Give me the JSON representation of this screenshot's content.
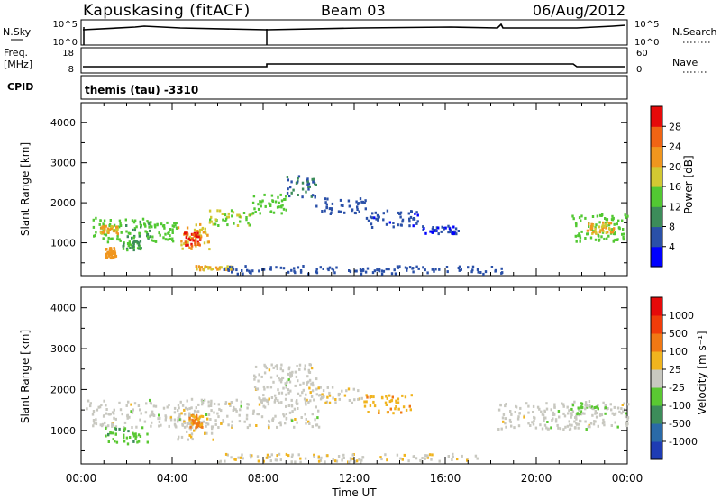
{
  "header": {
    "station": "Kapuskasing (fitACF)",
    "beam": "Beam 03",
    "date": "06/Aug/2012"
  },
  "noise_panel": {
    "left_label": "N.Sky",
    "right_label": "N.Search",
    "left_ticks": [
      "10^5",
      "10^0"
    ],
    "right_ticks": [
      "10^5",
      "10^0"
    ]
  },
  "freq_panel": {
    "left_label_1": "Freq.",
    "left_label_2": "[MHz]",
    "right_label": "Nave",
    "left_ticks": [
      "18",
      "8"
    ],
    "right_ticks": [
      "60",
      "0"
    ]
  },
  "cpid_panel": {
    "label": "CPID",
    "text": "themis (tau) -3310"
  },
  "chart_data": [
    {
      "type": "heatmap",
      "title": "",
      "xlabel": "Time UT",
      "ylabel": "Slant Range [km]",
      "x_ticks": [
        "00:00",
        "04:00",
        "08:00",
        "12:00",
        "16:00",
        "20:00",
        "00:00"
      ],
      "xlim_hours": [
        0,
        24
      ],
      "y_ticks": [
        1000,
        2000,
        3000,
        4000
      ],
      "ylim": [
        180,
        4500
      ],
      "colorbar_label": "Power [dB]",
      "colorbar_ticks": [
        "4",
        "8",
        "12",
        "16",
        "20",
        "24",
        "28"
      ],
      "colorbar_colors": [
        "#0000ff",
        "#2a50a8",
        "#3c8c5a",
        "#52c832",
        "#d2c832",
        "#f0961e",
        "#f06414",
        "#e60a0a"
      ],
      "clim": [
        0,
        32
      ],
      "bands": [
        {
          "t0": 0.5,
          "t1": 1.8,
          "r0": 1050,
          "r1": 1650,
          "v": 14
        },
        {
          "t0": 0.8,
          "t1": 1.6,
          "r0": 1250,
          "r1": 1450,
          "v": 20
        },
        {
          "t0": 1.8,
          "t1": 3.0,
          "r0": 1150,
          "r1": 1650,
          "v": 12
        },
        {
          "t0": 3.0,
          "t1": 4.2,
          "r0": 1050,
          "r1": 1550,
          "v": 14
        },
        {
          "t0": 4.2,
          "t1": 5.6,
          "r0": 850,
          "r1": 1500,
          "v": 20
        },
        {
          "t0": 4.5,
          "t1": 5.2,
          "r0": 950,
          "r1": 1300,
          "v": 28
        },
        {
          "t0": 5.6,
          "t1": 7.5,
          "r0": 1450,
          "r1": 1850,
          "v": 16
        },
        {
          "t0": 7.5,
          "t1": 9.0,
          "r0": 1750,
          "r1": 2250,
          "v": 14
        },
        {
          "t0": 9.0,
          "t1": 10.3,
          "r0": 2150,
          "r1": 2700,
          "v": 8
        },
        {
          "t0": 1.0,
          "t1": 1.5,
          "r0": 650,
          "r1": 900,
          "v": 22
        },
        {
          "t0": 1.8,
          "t1": 2.6,
          "r0": 850,
          "r1": 1100,
          "v": 12
        },
        {
          "t0": 5.0,
          "t1": 6.6,
          "r0": 350,
          "r1": 450,
          "v": 20
        },
        {
          "t0": 10.3,
          "t1": 12.5,
          "r0": 1750,
          "r1": 2150,
          "v": 6
        },
        {
          "t0": 12.5,
          "t1": 14.8,
          "r0": 1400,
          "r1": 1850,
          "v": 5
        },
        {
          "t0": 14.8,
          "t1": 16.6,
          "r0": 1250,
          "r1": 1450,
          "v": 4
        },
        {
          "t0": 21.5,
          "t1": 24.0,
          "r0": 1050,
          "r1": 1750,
          "v": 14
        },
        {
          "t0": 22.2,
          "t1": 23.4,
          "r0": 1250,
          "r1": 1550,
          "v": 20
        },
        {
          "t0": 6.0,
          "t1": 18.5,
          "r0": 250,
          "r1": 450,
          "v": 6
        }
      ]
    },
    {
      "type": "heatmap",
      "title": "",
      "xlabel": "Time UT",
      "ylabel": "Slant Range [km]",
      "x_ticks": [
        "00:00",
        "04:00",
        "08:00",
        "12:00",
        "16:00",
        "20:00",
        "00:00"
      ],
      "xlim_hours": [
        0,
        24
      ],
      "y_ticks": [
        1000,
        2000,
        3000,
        4000
      ],
      "ylim": [
        180,
        4500
      ],
      "colorbar_label": "Velocity [m s⁻¹]",
      "colorbar_ticks": [
        "1000",
        "500",
        "100",
        "25",
        "-25",
        "-100",
        "-500",
        "-1000"
      ],
      "colorbar_colors": [
        "#1e3cb4",
        "#2a6aa8",
        "#3c8c5a",
        "#5ac832",
        "#c8c8c0",
        "#f0b41e",
        "#f07814",
        "#f03c0a",
        "#e60a0a"
      ],
      "clim": [
        -1200,
        1200
      ],
      "bands": [
        {
          "t0": 0.2,
          "t1": 10.5,
          "r0": 1100,
          "r1": 1800,
          "v": 0
        },
        {
          "t0": 7.5,
          "t1": 10.3,
          "r0": 1700,
          "r1": 2650,
          "v": 0
        },
        {
          "t0": 1.0,
          "t1": 3.0,
          "r0": 700,
          "r1": 1100,
          "v": -300
        },
        {
          "t0": 4.2,
          "t1": 5.8,
          "r0": 800,
          "r1": 1450,
          "v": 60
        },
        {
          "t0": 4.7,
          "t1": 5.3,
          "r0": 1100,
          "r1": 1400,
          "v": 400
        },
        {
          "t0": 10.3,
          "t1": 12.3,
          "r0": 1700,
          "r1": 2100,
          "v": 80
        },
        {
          "t0": 12.3,
          "t1": 14.5,
          "r0": 1450,
          "r1": 1900,
          "v": 300
        },
        {
          "t0": 18.3,
          "t1": 24.0,
          "r0": 1050,
          "r1": 1700,
          "v": 0
        },
        {
          "t0": 21.5,
          "t1": 23.0,
          "r0": 1400,
          "r1": 1750,
          "v": -120
        },
        {
          "t0": 6.0,
          "t1": 17.5,
          "r0": 250,
          "r1": 450,
          "v": 60
        }
      ]
    }
  ]
}
